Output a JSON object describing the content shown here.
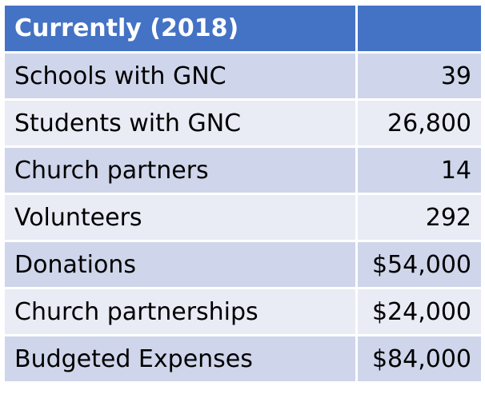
{
  "table": {
    "header": {
      "label": "Currently (2018)",
      "value": ""
    },
    "rows": [
      {
        "label": "Schools with GNC",
        "value": "39"
      },
      {
        "label": "Students with GNC",
        "value": "26,800"
      },
      {
        "label": "Church partners",
        "value": "14"
      },
      {
        "label": "Volunteers",
        "value": "292"
      },
      {
        "label": "Donations",
        "value": "$54,000"
      },
      {
        "label": "Church partnerships",
        "value": "$24,000"
      },
      {
        "label": "Budgeted Expenses",
        "value": "$84,000"
      }
    ]
  },
  "colors": {
    "header_bg": "#4472c4",
    "row_dark": "#cfd5ea",
    "row_light": "#e9ebf5",
    "header_text": "#ffffff"
  }
}
